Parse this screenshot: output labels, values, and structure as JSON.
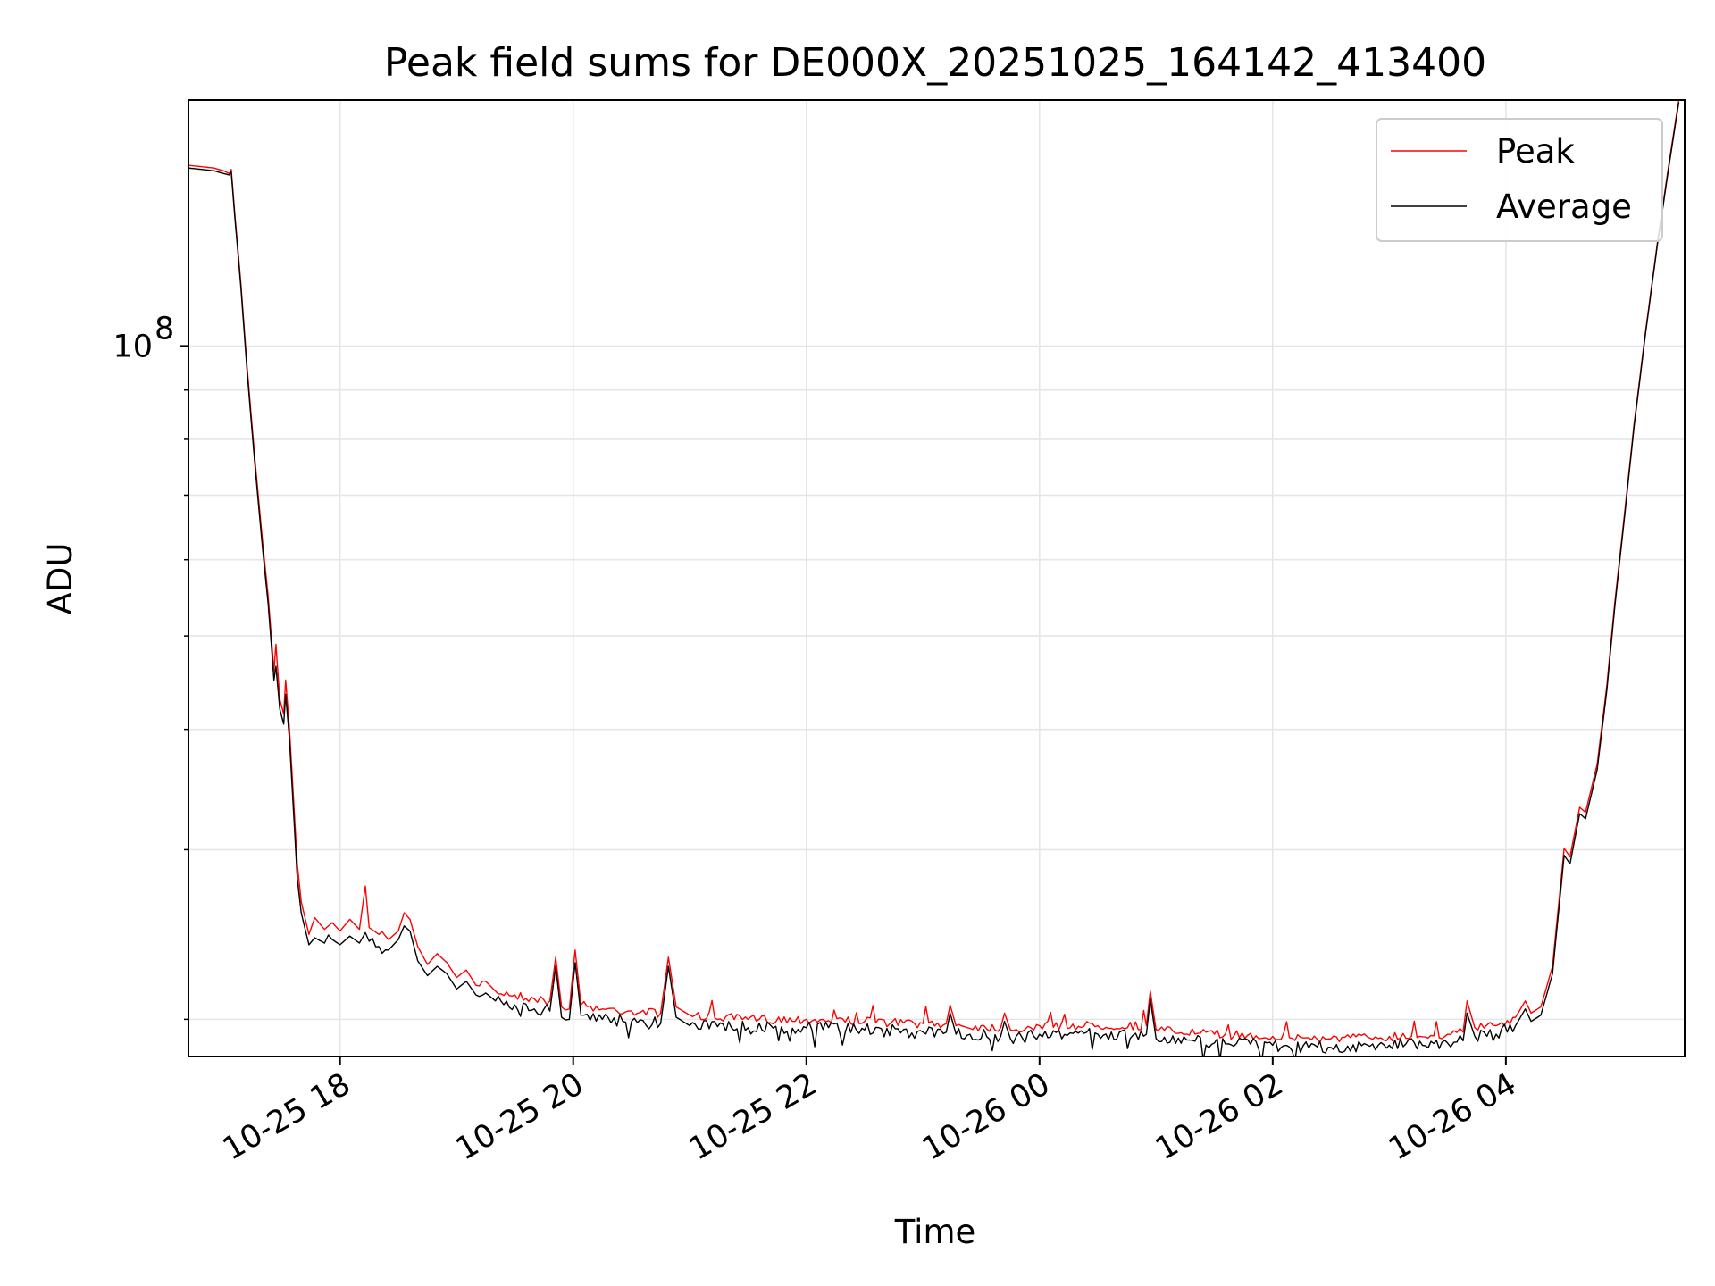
{
  "chart_data": {
    "type": "line",
    "title": "Peak field sums for DE000X_20251025_164142_413400",
    "xlabel": "Time",
    "ylabel": "ADU",
    "y_scale": "log",
    "ylim": [
      18300000,
      180000000
    ],
    "xlim": [
      "2025-10-25 16:42",
      "2025-10-26 05:32"
    ],
    "grid": true,
    "legend_position": "top-right",
    "y_major_tick_labels": [
      {
        "value": 100000000,
        "base": "10",
        "exponent": "8"
      }
    ],
    "y_minor_ticks": [
      20000000,
      30000000,
      40000000,
      50000000,
      60000000,
      70000000,
      80000000,
      90000000,
      200000000
    ],
    "x_ticks": [
      {
        "t": "2025-10-25 18:00",
        "label": "10-25 18"
      },
      {
        "t": "2025-10-25 20:00",
        "label": "10-25 20"
      },
      {
        "t": "2025-10-25 22:00",
        "label": "10-25 22"
      },
      {
        "t": "2025-10-26 00:00",
        "label": "10-26 00"
      },
      {
        "t": "2025-10-26 02:00",
        "label": "10-26 02"
      },
      {
        "t": "2025-10-26 04:00",
        "label": "10-26 04"
      }
    ],
    "series": [
      {
        "name": "Peak",
        "color": "#ff0000",
        "points": [
          [
            "2025-10-25 16:42",
            154000000
          ],
          [
            "2025-10-25 16:55",
            153000000
          ],
          [
            "2025-10-25 17:00",
            152000000
          ],
          [
            "2025-10-25 17:03",
            151000000
          ],
          [
            "2025-10-25 17:04",
            152500000
          ],
          [
            "2025-10-25 17:06",
            136000000
          ],
          [
            "2025-10-25 17:09",
            116000000
          ],
          [
            "2025-10-25 17:12",
            96000000
          ],
          [
            "2025-10-25 17:16",
            77000000
          ],
          [
            "2025-10-25 17:20",
            63000000
          ],
          [
            "2025-10-25 17:23",
            55000000
          ],
          [
            "2025-10-25 17:26",
            46000000
          ],
          [
            "2025-10-25 17:27",
            49000000
          ],
          [
            "2025-10-25 17:29",
            43000000
          ],
          [
            "2025-10-25 17:31",
            41500000
          ],
          [
            "2025-10-25 17:32",
            45000000
          ],
          [
            "2025-10-25 17:34",
            40000000
          ],
          [
            "2025-10-25 17:36",
            34000000
          ],
          [
            "2025-10-25 17:38",
            29000000
          ],
          [
            "2025-10-25 17:40",
            26500000
          ],
          [
            "2025-10-25 17:44",
            24500000
          ],
          [
            "2025-10-25 17:47",
            25500000
          ],
          [
            "2025-10-25 17:52",
            24800000
          ],
          [
            "2025-10-25 17:56",
            25200000
          ],
          [
            "2025-10-25 18:00",
            24700000
          ],
          [
            "2025-10-25 18:05",
            25400000
          ],
          [
            "2025-10-25 18:10",
            24800000
          ],
          [
            "2025-10-25 18:13",
            27500000
          ],
          [
            "2025-10-25 18:15",
            24900000
          ],
          [
            "2025-10-25 18:20",
            24500000
          ],
          [
            "2025-10-25 18:25",
            24200000
          ],
          [
            "2025-10-25 18:30",
            24700000
          ],
          [
            "2025-10-25 18:33",
            25800000
          ],
          [
            "2025-10-25 18:36",
            25400000
          ],
          [
            "2025-10-25 18:40",
            23800000
          ],
          [
            "2025-10-25 18:45",
            22800000
          ],
          [
            "2025-10-25 18:50",
            23400000
          ],
          [
            "2025-10-25 18:55",
            22900000
          ],
          [
            "2025-10-25 19:00",
            22100000
          ],
          [
            "2025-10-25 19:05",
            22500000
          ],
          [
            "2025-10-25 19:10",
            21700000
          ],
          [
            "2025-10-25 19:15",
            21900000
          ],
          [
            "2025-10-25 19:20",
            21400000
          ],
          [
            "2025-10-25 19:30",
            21200000
          ],
          [
            "2025-10-25 19:40",
            21000000
          ],
          [
            "2025-10-25 19:48",
            20900000
          ],
          [
            "2025-10-25 19:51",
            23200000
          ],
          [
            "2025-10-25 19:54",
            20600000
          ],
          [
            "2025-10-25 19:58",
            20500000
          ],
          [
            "2025-10-25 20:01",
            23600000
          ],
          [
            "2025-10-25 20:04",
            20700000
          ],
          [
            "2025-10-25 20:15",
            20500000
          ],
          [
            "2025-10-25 20:30",
            20400000
          ],
          [
            "2025-10-25 20:45",
            20300000
          ],
          [
            "2025-10-25 20:49",
            23200000
          ],
          [
            "2025-10-25 20:53",
            20600000
          ],
          [
            "2025-10-25 21:00",
            20200000
          ],
          [
            "2025-10-25 21:30",
            20000000
          ],
          [
            "2025-10-25 22:00",
            20000000
          ],
          [
            "2025-10-25 22:30",
            19900000
          ],
          [
            "2025-10-25 23:00",
            19800000
          ],
          [
            "2025-10-25 23:12",
            19800000
          ],
          [
            "2025-10-25 23:14",
            20700000
          ],
          [
            "2025-10-25 23:17",
            19700000
          ],
          [
            "2025-10-25 23:40",
            19600000
          ],
          [
            "2025-10-25 23:42",
            20300000
          ],
          [
            "2025-10-25 23:45",
            19500000
          ],
          [
            "2025-10-26 00:00",
            19700000
          ],
          [
            "2025-10-26 00:30",
            19700000
          ],
          [
            "2025-10-26 00:55",
            19700000
          ],
          [
            "2025-10-26 00:57",
            21400000
          ],
          [
            "2025-10-26 01:00",
            19500000
          ],
          [
            "2025-10-26 01:30",
            19300000
          ],
          [
            "2025-10-26 02:00",
            19200000
          ],
          [
            "2025-10-26 02:30",
            19100000
          ],
          [
            "2025-10-26 03:00",
            19200000
          ],
          [
            "2025-10-26 03:30",
            19300000
          ],
          [
            "2025-10-26 03:38",
            19400000
          ],
          [
            "2025-10-26 03:40",
            20900000
          ],
          [
            "2025-10-26 03:44",
            19600000
          ],
          [
            "2025-10-26 03:55",
            19700000
          ],
          [
            "2025-10-26 04:05",
            20100000
          ],
          [
            "2025-10-26 04:10",
            20900000
          ],
          [
            "2025-10-26 04:13",
            20300000
          ],
          [
            "2025-10-26 04:18",
            20600000
          ],
          [
            "2025-10-26 04:24",
            22700000
          ],
          [
            "2025-10-26 04:30",
            30100000
          ],
          [
            "2025-10-26 04:33",
            29500000
          ],
          [
            "2025-10-26 04:38",
            33200000
          ],
          [
            "2025-10-26 04:41",
            32800000
          ],
          [
            "2025-10-26 04:47",
            36800000
          ],
          [
            "2025-10-26 04:52",
            44500000
          ],
          [
            "2025-10-26 04:56",
            54000000
          ],
          [
            "2025-10-26 05:00",
            64000000
          ],
          [
            "2025-10-26 05:06",
            83000000
          ],
          [
            "2025-10-26 05:12",
            104000000
          ],
          [
            "2025-10-26 05:18",
            128000000
          ],
          [
            "2025-10-26 05:24",
            155000000
          ],
          [
            "2025-10-26 05:29",
            180000000
          ]
        ]
      },
      {
        "name": "Average",
        "color": "#000000",
        "points": [
          [
            "2025-10-25 16:42",
            153000000
          ],
          [
            "2025-10-25 16:55",
            152000000
          ],
          [
            "2025-10-25 17:00",
            151000000
          ],
          [
            "2025-10-25 17:03",
            150500000
          ],
          [
            "2025-10-25 17:04",
            151500000
          ],
          [
            "2025-10-25 17:06",
            135000000
          ],
          [
            "2025-10-25 17:09",
            115000000
          ],
          [
            "2025-10-25 17:12",
            95000000
          ],
          [
            "2025-10-25 17:16",
            76000000
          ],
          [
            "2025-10-25 17:20",
            62000000
          ],
          [
            "2025-10-25 17:23",
            54000000
          ],
          [
            "2025-10-25 17:26",
            45000000
          ],
          [
            "2025-10-25 17:27",
            46500000
          ],
          [
            "2025-10-25 17:29",
            42000000
          ],
          [
            "2025-10-25 17:31",
            40500000
          ],
          [
            "2025-10-25 17:32",
            43500000
          ],
          [
            "2025-10-25 17:34",
            39000000
          ],
          [
            "2025-10-25 17:36",
            33000000
          ],
          [
            "2025-10-25 17:38",
            28000000
          ],
          [
            "2025-10-25 17:40",
            25800000
          ],
          [
            "2025-10-25 17:44",
            23900000
          ],
          [
            "2025-10-25 17:47",
            24300000
          ],
          [
            "2025-10-25 17:52",
            24000000
          ],
          [
            "2025-10-25 17:56",
            24200000
          ],
          [
            "2025-10-25 18:00",
            23900000
          ],
          [
            "2025-10-25 18:05",
            24400000
          ],
          [
            "2025-10-25 18:10",
            24000000
          ],
          [
            "2025-10-25 18:13",
            24600000
          ],
          [
            "2025-10-25 18:15",
            24100000
          ],
          [
            "2025-10-25 18:20",
            23800000
          ],
          [
            "2025-10-25 18:25",
            23600000
          ],
          [
            "2025-10-25 18:30",
            24200000
          ],
          [
            "2025-10-25 18:33",
            25000000
          ],
          [
            "2025-10-25 18:36",
            24700000
          ],
          [
            "2025-10-25 18:40",
            23000000
          ],
          [
            "2025-10-25 18:45",
            22200000
          ],
          [
            "2025-10-25 18:50",
            22700000
          ],
          [
            "2025-10-25 18:55",
            22300000
          ],
          [
            "2025-10-25 19:00",
            21500000
          ],
          [
            "2025-10-25 19:05",
            21900000
          ],
          [
            "2025-10-25 19:10",
            21200000
          ],
          [
            "2025-10-25 19:15",
            21300000
          ],
          [
            "2025-10-25 19:20",
            20900000
          ],
          [
            "2025-10-25 19:30",
            20700000
          ],
          [
            "2025-10-25 19:40",
            20500000
          ],
          [
            "2025-10-25 19:48",
            20400000
          ],
          [
            "2025-10-25 19:51",
            22700000
          ],
          [
            "2025-10-25 19:54",
            20100000
          ],
          [
            "2025-10-25 19:58",
            20000000
          ],
          [
            "2025-10-25 20:01",
            22900000
          ],
          [
            "2025-10-25 20:04",
            20200000
          ],
          [
            "2025-10-25 20:15",
            20000000
          ],
          [
            "2025-10-25 20:30",
            19900000
          ],
          [
            "2025-10-25 20:45",
            19800000
          ],
          [
            "2025-10-25 20:49",
            22700000
          ],
          [
            "2025-10-25 20:53",
            20100000
          ],
          [
            "2025-10-25 21:00",
            19700000
          ],
          [
            "2025-10-25 21:30",
            19600000
          ],
          [
            "2025-10-25 22:00",
            19600000
          ],
          [
            "2025-10-25 22:30",
            19500000
          ],
          [
            "2025-10-25 23:00",
            19400000
          ],
          [
            "2025-10-25 23:12",
            19400000
          ],
          [
            "2025-10-25 23:14",
            20300000
          ],
          [
            "2025-10-25 23:17",
            19300000
          ],
          [
            "2025-10-25 23:40",
            19200000
          ],
          [
            "2025-10-25 23:42",
            19900000
          ],
          [
            "2025-10-25 23:45",
            19100000
          ],
          [
            "2025-10-26 00:00",
            19300000
          ],
          [
            "2025-10-26 00:30",
            19300000
          ],
          [
            "2025-10-26 00:55",
            19300000
          ],
          [
            "2025-10-26 00:57",
            21000000
          ],
          [
            "2025-10-26 01:00",
            19100000
          ],
          [
            "2025-10-26 01:30",
            18900000
          ],
          [
            "2025-10-26 02:00",
            18800000
          ],
          [
            "2025-10-26 02:30",
            18700000
          ],
          [
            "2025-10-26 03:00",
            18800000
          ],
          [
            "2025-10-26 03:30",
            18900000
          ],
          [
            "2025-10-26 03:38",
            19000000
          ],
          [
            "2025-10-26 03:40",
            20300000
          ],
          [
            "2025-10-26 03:44",
            19200000
          ],
          [
            "2025-10-26 03:55",
            19300000
          ],
          [
            "2025-10-26 04:05",
            19700000
          ],
          [
            "2025-10-26 04:10",
            20500000
          ],
          [
            "2025-10-26 04:13",
            19900000
          ],
          [
            "2025-10-26 04:18",
            20200000
          ],
          [
            "2025-10-26 04:24",
            22300000
          ],
          [
            "2025-10-26 04:30",
            29600000
          ],
          [
            "2025-10-26 04:33",
            29000000
          ],
          [
            "2025-10-26 04:38",
            32700000
          ],
          [
            "2025-10-26 04:41",
            32300000
          ],
          [
            "2025-10-26 04:47",
            36300000
          ],
          [
            "2025-10-26 04:52",
            44000000
          ],
          [
            "2025-10-26 04:56",
            53500000
          ],
          [
            "2025-10-26 05:00",
            63500000
          ],
          [
            "2025-10-26 05:06",
            82500000
          ],
          [
            "2025-10-26 05:12",
            103500000
          ],
          [
            "2025-10-26 05:18",
            127500000
          ],
          [
            "2025-10-26 05:24",
            154000000
          ],
          [
            "2025-10-26 05:29",
            179000000
          ]
        ]
      }
    ]
  }
}
